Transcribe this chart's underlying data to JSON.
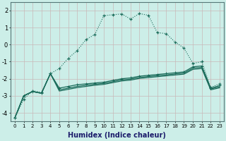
{
  "xlabel": "Humidex (Indice chaleur)",
  "background_color": "#cceee8",
  "grid_color": "#c8b8b8",
  "line_color": "#1a6b5a",
  "x_values": [
    0,
    1,
    2,
    3,
    4,
    5,
    6,
    7,
    8,
    9,
    10,
    11,
    12,
    13,
    14,
    15,
    16,
    17,
    18,
    19,
    20,
    21,
    22,
    23
  ],
  "series1": [
    -4.3,
    -3.2,
    -2.7,
    -2.8,
    -1.7,
    -1.4,
    -0.8,
    -0.35,
    0.3,
    0.6,
    1.7,
    1.75,
    1.8,
    1.5,
    1.82,
    1.72,
    0.7,
    0.65,
    0.15,
    -0.2,
    -1.1,
    -1.0,
    -2.5,
    -2.3
  ],
  "series2": [
    -4.3,
    -3.0,
    -2.75,
    -2.85,
    -1.7,
    -2.55,
    -2.45,
    -2.35,
    -2.3,
    -2.25,
    -2.2,
    -2.1,
    -2.0,
    -1.95,
    -1.85,
    -1.8,
    -1.75,
    -1.7,
    -1.65,
    -1.6,
    -1.3,
    -1.25,
    -2.55,
    -2.4
  ],
  "series3": [
    -4.3,
    -3.0,
    -2.75,
    -2.85,
    -1.7,
    -2.65,
    -2.55,
    -2.45,
    -2.38,
    -2.32,
    -2.27,
    -2.17,
    -2.07,
    -2.02,
    -1.92,
    -1.87,
    -1.82,
    -1.77,
    -1.72,
    -1.67,
    -1.38,
    -1.33,
    -2.6,
    -2.47
  ],
  "series4": [
    -4.3,
    -3.0,
    -2.75,
    -2.85,
    -1.7,
    -2.72,
    -2.62,
    -2.52,
    -2.45,
    -2.38,
    -2.33,
    -2.23,
    -2.13,
    -2.08,
    -1.98,
    -1.93,
    -1.88,
    -1.83,
    -1.78,
    -1.73,
    -1.45,
    -1.4,
    -2.65,
    -2.53
  ],
  "ylim": [
    -4.5,
    2.5
  ],
  "xlim": [
    -0.5,
    23.5
  ],
  "yticks": [
    -4,
    -3,
    -2,
    -1,
    0,
    1,
    2
  ],
  "xticks": [
    0,
    1,
    2,
    3,
    4,
    5,
    6,
    7,
    8,
    9,
    10,
    11,
    12,
    13,
    14,
    15,
    16,
    17,
    18,
    19,
    20,
    21,
    22,
    23
  ],
  "xlabel_color": "#1a1a6a",
  "xlabel_fontsize": 7,
  "tick_fontsize": 5,
  "ytick_fontsize": 6
}
